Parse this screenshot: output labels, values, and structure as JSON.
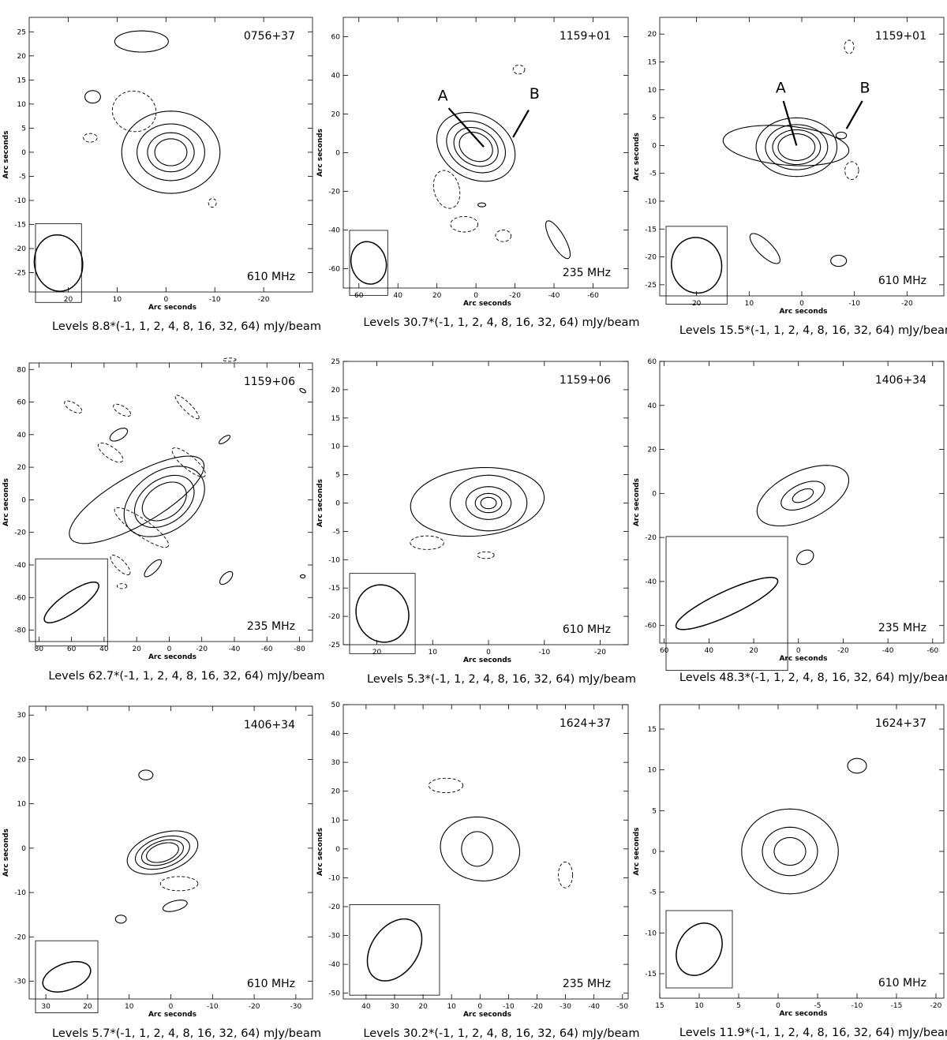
{
  "figure": {
    "x_axis_label": "Arc seconds",
    "y_axis_label": "Arc seconds",
    "levels_multipliers": "(-1, 1, 2, 4, 8, 16, 32, 64)",
    "levels_unit": "mJy/beam"
  },
  "chart_data": [
    {
      "type": "contour",
      "source": "0756+37",
      "frequency": "610 MHz",
      "levels_label": "Levels 8.8*(-1, 1, 2, 4, 8, 16, 32, 64) mJy/beam",
      "base_level_mJy_per_beam": 8.8,
      "xlim": [
        28,
        -30
      ],
      "ylim": [
        -29,
        28
      ],
      "xticks": [
        20,
        10,
        0,
        -10,
        -20
      ],
      "yticks": [
        25,
        20,
        15,
        10,
        5,
        0,
        -5,
        -10,
        -15,
        -20,
        -25
      ],
      "beam": {
        "x": 22,
        "y": -23,
        "major": 5.8,
        "minor": 5.0,
        "pa": -80
      },
      "components": [
        {
          "x": -1,
          "y": 0,
          "rx": 3.3,
          "ry": 2.8,
          "pa": 0,
          "levels": [
            1,
            2,
            4,
            8
          ],
          "growth": 1.45,
          "kind": "pos"
        },
        {
          "x": 5,
          "y": 23,
          "rx": 5.5,
          "ry": 2.2,
          "pa": 0,
          "levels": [
            1
          ],
          "kind": "pos"
        },
        {
          "x": 15,
          "y": 11.5,
          "rx": 1.6,
          "ry": 1.3,
          "pa": 0,
          "levels": [
            1
          ],
          "kind": "pos"
        },
        {
          "x": 6.5,
          "y": 8.5,
          "rx": 4.5,
          "ry": 4.2,
          "pa": -15,
          "levels": [
            1
          ],
          "kind": "neg"
        },
        {
          "x": 15.5,
          "y": 3,
          "rx": 1.4,
          "ry": 0.9,
          "pa": 0,
          "levels": [
            1
          ],
          "kind": "neg"
        },
        {
          "x": -9.5,
          "y": -10.5,
          "rx": 0.8,
          "ry": 0.9,
          "pa": 0,
          "levels": [
            1
          ],
          "kind": "neg"
        }
      ]
    },
    {
      "type": "contour",
      "source": "1159+01",
      "frequency": "235 MHz",
      "levels_label": "Levels 30.7*(-1, 1, 2, 4, 8, 16, 32, 64) mJy/beam",
      "base_level_mJy_per_beam": 30.7,
      "xlim": [
        68,
        -78
      ],
      "ylim": [
        -70,
        70
      ],
      "xticks": [
        60,
        40,
        20,
        0,
        -20,
        -40,
        -60
      ],
      "yticks": [
        60,
        40,
        20,
        0,
        -20,
        -40,
        -60
      ],
      "beam": {
        "x": 55,
        "y": -57,
        "major": 11,
        "minor": 9,
        "pa": -75
      },
      "components": [
        {
          "x": 0,
          "y": 3,
          "rx": 9,
          "ry": 7,
          "pa": -30,
          "levels": [
            1,
            2,
            4,
            8
          ],
          "growth": 1.33,
          "kind": "pos"
        },
        {
          "x": -42,
          "y": -45,
          "rx": 11,
          "ry": 3.5,
          "pa": -60,
          "levels": [
            1
          ],
          "kind": "pos"
        },
        {
          "x": -3,
          "y": -27,
          "rx": 2,
          "ry": 1,
          "pa": 0,
          "levels": [
            1
          ],
          "kind": "pos"
        },
        {
          "x": -22,
          "y": 43,
          "rx": 3,
          "ry": 2.3,
          "pa": 0,
          "levels": [
            1
          ],
          "kind": "neg"
        },
        {
          "x": 15,
          "y": -19,
          "rx": 6.5,
          "ry": 10,
          "pa": 15,
          "levels": [
            1
          ],
          "kind": "neg"
        },
        {
          "x": 6,
          "y": -37,
          "rx": 7,
          "ry": 4,
          "pa": 0,
          "levels": [
            1
          ],
          "kind": "neg"
        },
        {
          "x": -14,
          "y": -43,
          "rx": 4,
          "ry": 3,
          "pa": 0,
          "levels": [
            1
          ],
          "kind": "neg"
        }
      ],
      "annotations": [
        {
          "text": "A",
          "label_x": 17,
          "label_y": 27,
          "x1": 14,
          "y1": 23,
          "x2": -4,
          "y2": 3
        },
        {
          "text": "B",
          "label_x": -30,
          "label_y": 28,
          "x1": -27,
          "y1": 22,
          "x2": -19,
          "y2": 8
        }
      ]
    },
    {
      "type": "contour",
      "source": "1159+01",
      "frequency": "610 MHz",
      "levels_label": "Levels 15.5*(-1, 1, 2, 4, 8, 16, 32, 64) mJy/beam",
      "base_level_mJy_per_beam": 15.5,
      "xlim": [
        27,
        -27
      ],
      "ylim": [
        -27,
        23
      ],
      "xticks": [
        20,
        10,
        0,
        -10,
        -20
      ],
      "yticks": [
        20,
        15,
        10,
        5,
        0,
        -5,
        -10,
        -15,
        -20,
        -25
      ],
      "beam": {
        "x": 20,
        "y": -21.5,
        "major": 5.3,
        "minor": 4.5,
        "pa": -80
      },
      "components": [
        {
          "x": 1,
          "y": -0.3,
          "rx": 3.5,
          "ry": 2.4,
          "pa": 0,
          "levels": [
            1,
            2,
            4,
            8
          ],
          "growth": 1.3,
          "kind": "pos"
        },
        {
          "x": 3,
          "y": 0,
          "rx": 12,
          "ry": 3.5,
          "pa": -5,
          "levels": [
            1
          ],
          "kind": "pos"
        },
        {
          "x": 7,
          "y": -18.5,
          "rx": 3.8,
          "ry": 1.3,
          "pa": -45,
          "levels": [
            1
          ],
          "kind": "pos"
        },
        {
          "x": -7,
          "y": -20.7,
          "rx": 1.5,
          "ry": 1,
          "pa": 0,
          "levels": [
            1
          ],
          "kind": "pos"
        },
        {
          "x": -7.5,
          "y": 1.8,
          "rx": 1,
          "ry": 0.6,
          "pa": 0,
          "levels": [
            1
          ],
          "kind": "pos"
        },
        {
          "x": -9,
          "y": 17.7,
          "rx": 0.9,
          "ry": 1.2,
          "pa": 0,
          "levels": [
            1
          ],
          "kind": "neg"
        },
        {
          "x": -9.5,
          "y": -4.5,
          "rx": 1.3,
          "ry": 1.6,
          "pa": 0,
          "levels": [
            1
          ],
          "kind": "neg"
        }
      ],
      "annotations": [
        {
          "text": "A",
          "label_x": 4,
          "label_y": 9.5,
          "x1": 3.5,
          "y1": 8,
          "x2": 1,
          "y2": 0
        },
        {
          "text": "B",
          "label_x": -12,
          "label_y": 9.5,
          "x1": -11.5,
          "y1": 8,
          "x2": -8.5,
          "y2": 3
        }
      ]
    },
    {
      "type": "contour",
      "source": "1159+06",
      "frequency": "235 MHz",
      "levels_label": "Levels 62.7*(-1, 1, 2, 4, 8, 16, 32, 64) mJy/beam",
      "base_level_mJy_per_beam": 62.7,
      "xlim": [
        86,
        -88
      ],
      "ylim": [
        -87,
        84
      ],
      "xticks": [
        80,
        60,
        40,
        20,
        0,
        -20,
        -40,
        -60,
        -80
      ],
      "yticks": [
        80,
        60,
        40,
        20,
        0,
        -20,
        -40,
        -60,
        -80
      ],
      "beam": {
        "x": 60,
        "y": -63,
        "major": 20,
        "minor": 6,
        "pa": 35
      },
      "components": [
        {
          "x": 3,
          "y": -1,
          "rx": 15,
          "ry": 10,
          "pa": 35,
          "levels": [
            1,
            2,
            4
          ],
          "growth": 1.35,
          "kind": "pos"
        },
        {
          "x": 20,
          "y": 0,
          "rx": 47,
          "ry": 15,
          "pa": 30,
          "levels": [
            1
          ],
          "kind": "pos"
        },
        {
          "x": 31,
          "y": 40,
          "rx": 6,
          "ry": 3,
          "pa": 30,
          "levels": [
            1
          ],
          "kind": "pos"
        },
        {
          "x": -34,
          "y": 37,
          "rx": 4,
          "ry": 1.5,
          "pa": 35,
          "levels": [
            1
          ],
          "kind": "pos"
        },
        {
          "x": 10,
          "y": -42,
          "rx": 7,
          "ry": 2.5,
          "pa": 45,
          "levels": [
            1
          ],
          "kind": "pos"
        },
        {
          "x": -35,
          "y": -48,
          "rx": 5,
          "ry": 2.5,
          "pa": 45,
          "levels": [
            1
          ],
          "kind": "pos"
        },
        {
          "x": -82,
          "y": -47,
          "rx": 1.5,
          "ry": 1,
          "pa": 0,
          "levels": [
            1
          ],
          "kind": "pos"
        },
        {
          "x": -82,
          "y": 67,
          "rx": 2,
          "ry": 1,
          "pa": -30,
          "levels": [
            1
          ],
          "kind": "pos"
        },
        {
          "x": 59,
          "y": 57,
          "rx": 6,
          "ry": 2.5,
          "pa": -30,
          "levels": [
            1
          ],
          "kind": "neg"
        },
        {
          "x": 29,
          "y": 55,
          "rx": 6,
          "ry": 2.5,
          "pa": -30,
          "levels": [
            1
          ],
          "kind": "neg"
        },
        {
          "x": 36,
          "y": 29,
          "rx": 9,
          "ry": 3.5,
          "pa": -35,
          "levels": [
            1
          ],
          "kind": "neg"
        },
        {
          "x": -11,
          "y": 57,
          "rx": 10,
          "ry": 2.5,
          "pa": -45,
          "levels": [
            1
          ],
          "kind": "neg"
        },
        {
          "x": -12,
          "y": 23,
          "rx": 13,
          "ry": 4,
          "pa": -40,
          "levels": [
            1
          ],
          "kind": "neg"
        },
        {
          "x": 17,
          "y": -17,
          "rx": 20,
          "ry": 5,
          "pa": -35,
          "levels": [
            1
          ],
          "kind": "neg"
        },
        {
          "x": 30,
          "y": -40,
          "rx": 8,
          "ry": 3,
          "pa": -45,
          "levels": [
            1
          ],
          "kind": "neg"
        },
        {
          "x": 29,
          "y": -53,
          "rx": 3,
          "ry": 1.5,
          "pa": 0,
          "levels": [
            1
          ],
          "kind": "neg"
        },
        {
          "x": -37,
          "y": 86,
          "rx": 4,
          "ry": 1,
          "pa": 0,
          "levels": [
            1
          ],
          "kind": "neg"
        }
      ]
    },
    {
      "type": "contour",
      "source": "1159+06",
      "frequency": "610 MHz",
      "levels_label": "Levels 5.3*(-1, 1, 2, 4, 8, 16, 32, 64) mJy/beam",
      "base_level_mJy_per_beam": 5.3,
      "xlim": [
        26,
        -25
      ],
      "ylim": [
        -25,
        25
      ],
      "xticks": [
        20,
        10,
        0,
        -10,
        -20
      ],
      "yticks": [
        25,
        20,
        15,
        10,
        5,
        0,
        -5,
        -10,
        -15,
        -20,
        -25
      ],
      "beam": {
        "x": 19,
        "y": -19.5,
        "major": 5.2,
        "minor": 4.6,
        "pa": -70
      },
      "components": [
        {
          "x": 0,
          "y": 0,
          "rx": 1.4,
          "ry": 1,
          "pa": 0,
          "levels": [
            1,
            2,
            4,
            8
          ],
          "growth": 1.7,
          "kind": "pos"
        },
        {
          "x": 2,
          "y": 0.2,
          "rx": 12,
          "ry": 6,
          "pa": 5,
          "levels": [
            1
          ],
          "kind": "pos"
        },
        {
          "x": 11,
          "y": -7,
          "rx": 3,
          "ry": 1.2,
          "pa": 0,
          "levels": [
            1
          ],
          "kind": "neg"
        },
        {
          "x": 0.5,
          "y": -9.2,
          "rx": 1.5,
          "ry": 0.6,
          "pa": 0,
          "levels": [
            1
          ],
          "kind": "neg"
        }
      ]
    },
    {
      "type": "contour",
      "source": "1406+34",
      "frequency": "235 MHz",
      "levels_label": "Levels 48.3*(-1, 1, 2, 4, 8, 16, 32, 64) mJy/beam",
      "base_level_mJy_per_beam": 48.3,
      "xlim": [
        62,
        -65
      ],
      "ylim": [
        -68,
        60
      ],
      "xticks": [
        60,
        40,
        20,
        0,
        -20,
        -40,
        -60
      ],
      "yticks": [
        60,
        40,
        20,
        0,
        -20,
        -40,
        -60
      ],
      "beam": {
        "x": 32,
        "y": -50,
        "major": 25,
        "minor": 5.5,
        "pa": 25
      },
      "components": [
        {
          "x": -2,
          "y": -1,
          "rx": 5,
          "ry": 2.5,
          "pa": 25,
          "levels": [
            1,
            2,
            4
          ],
          "growth": 2.1,
          "kind": "pos"
        },
        {
          "x": -3,
          "y": -29,
          "rx": 4,
          "ry": 3,
          "pa": 30,
          "levels": [
            1
          ],
          "kind": "pos"
        }
      ]
    },
    {
      "type": "contour",
      "source": "1406+34",
      "frequency": "610 MHz",
      "levels_label": "Levels 5.7*(-1, 1, 2, 4, 8, 16, 32, 64) mJy/beam",
      "base_level_mJy_per_beam": 5.7,
      "xlim": [
        34,
        -34
      ],
      "ylim": [
        -34,
        32
      ],
      "xticks": [
        30,
        20,
        10,
        0,
        -10,
        -20,
        -30
      ],
      "yticks": [
        30,
        20,
        10,
        0,
        -10,
        -20,
        -30
      ],
      "beam": {
        "x": 25,
        "y": -29,
        "major": 6,
        "minor": 3,
        "pa": 20
      },
      "components": [
        {
          "x": 2,
          "y": -1,
          "rx": 4,
          "ry": 2,
          "pa": 18,
          "levels": [
            1,
            2,
            4,
            8
          ],
          "growth": 1.3,
          "kind": "pos"
        },
        {
          "x": 6,
          "y": 16.5,
          "rx": 1.7,
          "ry": 1.1,
          "pa": 0,
          "levels": [
            1
          ],
          "kind": "pos"
        },
        {
          "x": -1,
          "y": -13,
          "rx": 3,
          "ry": 1.1,
          "pa": 15,
          "levels": [
            1
          ],
          "kind": "pos"
        },
        {
          "x": 12,
          "y": -16,
          "rx": 1.3,
          "ry": 0.9,
          "pa": 0,
          "levels": [
            1
          ],
          "kind": "pos"
        },
        {
          "x": -2,
          "y": -8,
          "rx": 4.5,
          "ry": 1.6,
          "pa": 0,
          "levels": [
            1
          ],
          "kind": "neg"
        }
      ]
    },
    {
      "type": "contour",
      "source": "1624+37",
      "frequency": "235 MHz",
      "levels_label": "Levels 30.2*(-1, 1, 2, 4, 8, 16, 32, 64) mJy/beam",
      "base_level_mJy_per_beam": 30.2,
      "xlim": [
        48,
        -52
      ],
      "ylim": [
        -52,
        50
      ],
      "xticks": [
        40,
        30,
        20,
        10,
        0,
        -10,
        -20,
        -30,
        -40,
        -50
      ],
      "yticks": [
        50,
        40,
        30,
        20,
        10,
        0,
        -10,
        -20,
        -30,
        -40,
        -50
      ],
      "beam": {
        "x": 30,
        "y": -35,
        "major": 12,
        "minor": 8,
        "pa": 55
      },
      "components": [
        {
          "x": 1,
          "y": 0,
          "rx": 5.5,
          "ry": 6,
          "pa": 0,
          "levels": [
            1
          ],
          "kind": "pos"
        },
        {
          "x": 0,
          "y": 0,
          "rx": 14,
          "ry": 11,
          "pa": -10,
          "levels": [
            1
          ],
          "kind": "pos"
        },
        {
          "x": 12,
          "y": 22,
          "rx": 6,
          "ry": 2.5,
          "pa": 0,
          "levels": [
            1
          ],
          "kind": "neg"
        },
        {
          "x": -30,
          "y": -9,
          "rx": 2.5,
          "ry": 4.5,
          "pa": 0,
          "levels": [
            1
          ],
          "kind": "neg"
        }
      ]
    },
    {
      "type": "contour",
      "source": "1624+37",
      "frequency": "610 MHz",
      "levels_label": "Levels 11.9*(-1, 1, 2, 4, 8, 16, 32, 64) mJy/beam",
      "base_level_mJy_per_beam": 11.9,
      "xlim": [
        15,
        -21
      ],
      "ylim": [
        -18,
        18
      ],
      "xticks": [
        15,
        10,
        5,
        0,
        -5,
        -10,
        -15,
        -20
      ],
      "yticks": [
        15,
        10,
        5,
        0,
        -5,
        -10,
        -15
      ],
      "beam": {
        "x": 10,
        "y": -12,
        "major": 3.5,
        "minor": 2.6,
        "pa": 60
      },
      "components": [
        {
          "x": -1.5,
          "y": 0,
          "rx": 2,
          "ry": 1.7,
          "pa": 0,
          "levels": [
            1,
            2,
            4
          ],
          "growth": 1.75,
          "kind": "pos"
        },
        {
          "x": -10,
          "y": 10.5,
          "rx": 1.2,
          "ry": 0.9,
          "pa": 0,
          "levels": [
            1
          ],
          "kind": "pos"
        }
      ]
    }
  ]
}
